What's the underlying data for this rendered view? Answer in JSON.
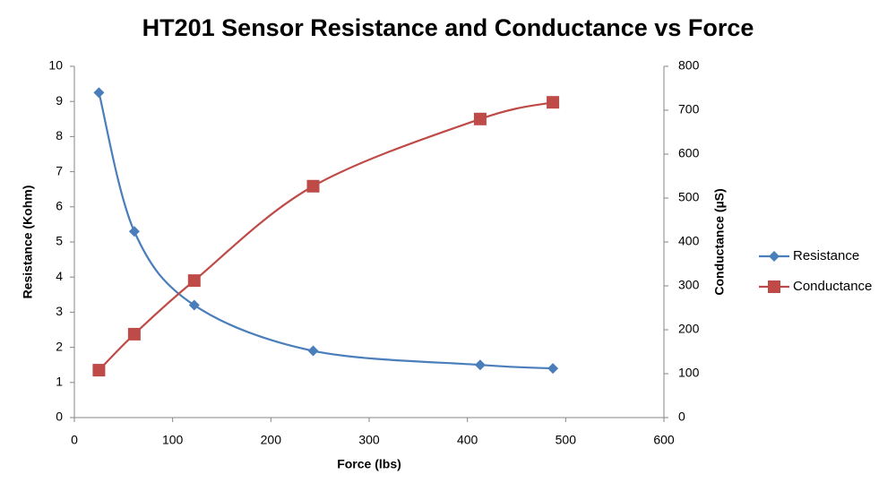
{
  "chart_data": {
    "type": "line",
    "title": "HT201 Sensor Resistance and Conductance vs Force",
    "xlabel": "Force (lbs)",
    "ylabel": "Resistance (Kohm)",
    "y2label": "Conductance (µS)",
    "x": [
      25,
      61,
      122,
      243,
      413,
      487
    ],
    "series": [
      {
        "name": "Resistance",
        "color": "#4a7ebb",
        "marker": "diamond",
        "values": [
          9.25,
          5.3,
          3.2,
          1.9,
          1.5,
          1.4
        ]
      },
      {
        "name": "Conductance",
        "color": "#be4b48",
        "marker": "square",
        "axis": "y2",
        "values": [
          108,
          190,
          312,
          527,
          680,
          718
        ]
      }
    ],
    "xlim": [
      0,
      600
    ],
    "xticks": [
      0,
      100,
      200,
      300,
      400,
      500,
      600
    ],
    "ylim": [
      0,
      10
    ],
    "yticks": [
      0,
      1,
      2,
      3,
      4,
      5,
      6,
      7,
      8,
      9,
      10
    ],
    "y2lim": [
      0,
      800
    ],
    "y2ticks": [
      0,
      100,
      200,
      300,
      400,
      500,
      600,
      700,
      800
    ],
    "smooth": true,
    "grid": false,
    "legend": "right"
  }
}
